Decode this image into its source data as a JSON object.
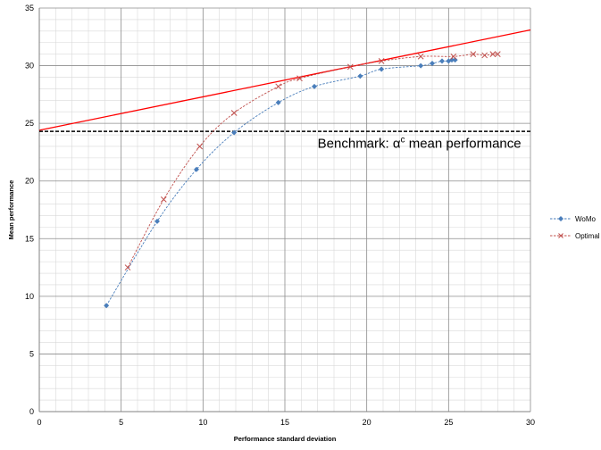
{
  "chart_data": {
    "type": "scatter",
    "title": "",
    "xlabel": "Performance standard deviation",
    "ylabel": "Mean performance",
    "xlim": [
      0,
      30
    ],
    "ylim": [
      0,
      35
    ],
    "x_ticks": [
      "0",
      "5",
      "10",
      "15",
      "20",
      "25",
      "30"
    ],
    "y_ticks": [
      "0",
      "5",
      "10",
      "15",
      "20",
      "25",
      "30",
      "35"
    ],
    "grid": true,
    "legend_position": "right",
    "series": [
      {
        "name": "WoMo",
        "color": "#4a7ebb",
        "marker": "diamond",
        "line": "dashed",
        "x": [
          4.1,
          7.2,
          9.6,
          11.9,
          14.6,
          16.8,
          19.6,
          20.9,
          23.3,
          24.0,
          24.6,
          25.0,
          25.2,
          25.4
        ],
        "y": [
          9.2,
          16.5,
          21.0,
          24.2,
          26.8,
          28.2,
          29.1,
          29.7,
          30.0,
          30.2,
          30.4,
          30.4,
          30.5,
          30.5
        ]
      },
      {
        "name": "Optimal",
        "color": "#c0504d",
        "marker": "x",
        "line": "dashed",
        "x": [
          5.4,
          7.6,
          9.8,
          11.9,
          14.6,
          15.9,
          19.0,
          20.9,
          23.3,
          25.3,
          26.5,
          27.2,
          27.7,
          28.0
        ],
        "y": [
          12.5,
          18.4,
          23.0,
          25.9,
          28.2,
          28.9,
          29.9,
          30.4,
          30.8,
          30.8,
          31.0,
          30.9,
          31.0,
          31.0
        ]
      }
    ],
    "reference_lines": [
      {
        "type": "line",
        "color": "#ff0000",
        "style": "solid",
        "x": [
          0,
          30
        ],
        "y": [
          24.4,
          33.1
        ]
      },
      {
        "type": "horizontal",
        "color": "#000000",
        "style": "dashed",
        "y": 24.3,
        "x": [
          0,
          30
        ]
      }
    ],
    "annotation": {
      "text": "Benchmark: α",
      "superscript": "c",
      "text_after": " mean performance",
      "anchor_x": 17.0,
      "anchor_y": 22.9
    }
  }
}
